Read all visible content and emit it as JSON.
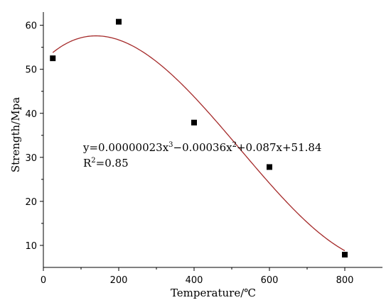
{
  "chart_data": {
    "type": "scatter",
    "xlabel": "Temperature/℃",
    "ylabel": "Strength/Mpa",
    "xlim": [
      0,
      900
    ],
    "ylim": [
      5,
      63
    ],
    "xticks": [
      0,
      200,
      400,
      600,
      800
    ],
    "yticks": [
      10,
      20,
      30,
      40,
      50,
      60
    ],
    "points": [
      {
        "x": 25,
        "y": 52.5
      },
      {
        "x": 200,
        "y": 60.8
      },
      {
        "x": 400,
        "y": 37.9
      },
      {
        "x": 600,
        "y": 27.8
      },
      {
        "x": 800,
        "y": 7.9
      }
    ],
    "fit": {
      "coefficients": [
        2.3e-07,
        -0.00036,
        0.087,
        51.84
      ],
      "x_range": [
        25,
        800
      ],
      "color": "#a52a2a"
    },
    "annotation": {
      "equation_parts": [
        "y=0.00000023x",
        "3",
        "−0.00036x",
        "2",
        "+0.087x+51.84"
      ],
      "r2_parts": [
        "R",
        "2",
        "=0.85"
      ]
    },
    "grid": false,
    "marker_color": "#000000"
  }
}
